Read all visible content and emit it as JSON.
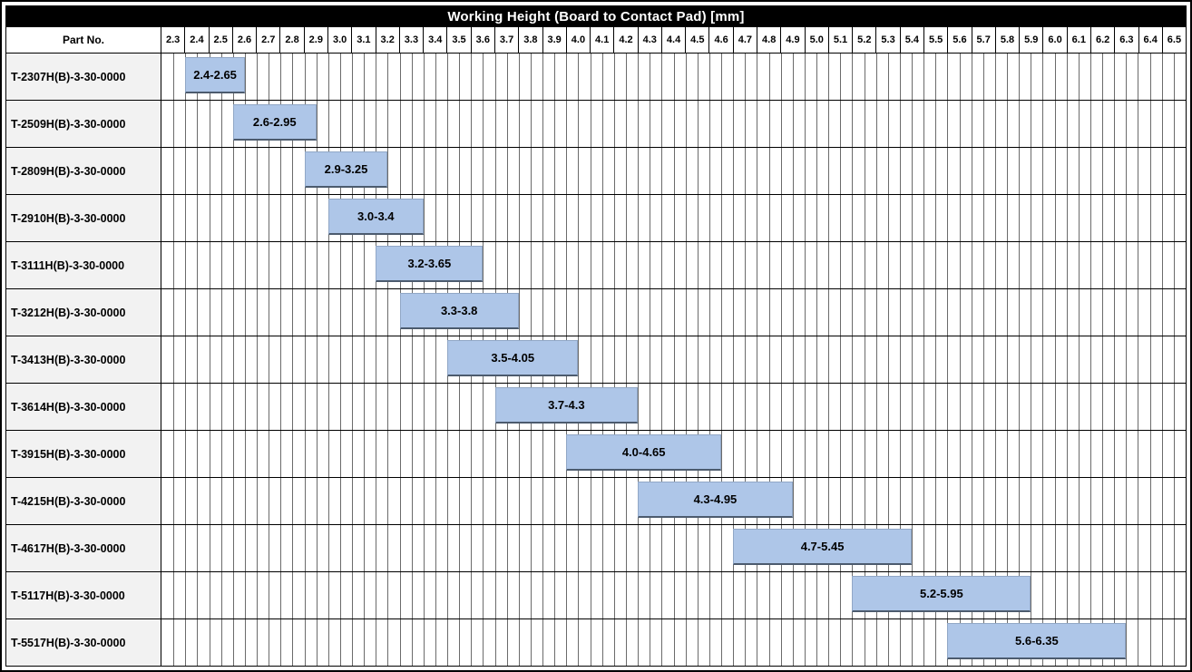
{
  "title": "Working Height (Board to Contact Pad) [mm]",
  "part_no_header": "Part No.",
  "colors": {
    "title_bg": "#000000",
    "title_text": "#FFFFFF",
    "bar_fill": "#AEC6E8",
    "bar_border": "#91A7C6",
    "bar_border_bottom": "#4C5B6E",
    "part_cell_bg": "#F2F2F2",
    "grid_line": "#6B6B6B",
    "row_border": "#000000"
  },
  "chart_data": {
    "type": "bar",
    "subtype": "horizontal-range-gantt",
    "title": "Working Height (Board to Contact Pad) [mm]",
    "xlabel": "",
    "ylabel": "Part No.",
    "grid": true,
    "axis": {
      "min": 2.3,
      "max": 6.6,
      "major_step": 0.1,
      "minor_step": 0.05,
      "tick_labels": [
        "2.3",
        "2.4",
        "2.5",
        "2.6",
        "2.7",
        "2.8",
        "2.9",
        "3.0",
        "3.1",
        "3.2",
        "3.3",
        "3.4",
        "3.5",
        "3.6",
        "3.7",
        "3.8",
        "3.9",
        "4.0",
        "4.1",
        "4.2",
        "4.3",
        "4.4",
        "4.5",
        "4.6",
        "4.7",
        "4.8",
        "4.9",
        "5.0",
        "5.1",
        "5.2",
        "5.3",
        "5.4",
        "5.5",
        "5.6",
        "5.7",
        "5.8",
        "5.9",
        "6.0",
        "6.1",
        "6.2",
        "6.3",
        "6.4",
        "6.5"
      ]
    },
    "rows": [
      {
        "part_no": "T-2307H(B)-3-30-0000",
        "start": 2.4,
        "end": 2.65,
        "label": "2.4-2.65"
      },
      {
        "part_no": "T-2509H(B)-3-30-0000",
        "start": 2.6,
        "end": 2.95,
        "label": "2.6-2.95"
      },
      {
        "part_no": "T-2809H(B)-3-30-0000",
        "start": 2.9,
        "end": 3.25,
        "label": "2.9-3.25"
      },
      {
        "part_no": "T-2910H(B)-3-30-0000",
        "start": 3.0,
        "end": 3.4,
        "label": "3.0-3.4"
      },
      {
        "part_no": "T-3111H(B)-3-30-0000",
        "start": 3.2,
        "end": 3.65,
        "label": "3.2-3.65"
      },
      {
        "part_no": "T-3212H(B)-3-30-0000",
        "start": 3.3,
        "end": 3.8,
        "label": "3.3-3.8"
      },
      {
        "part_no": "T-3413H(B)-3-30-0000",
        "start": 3.5,
        "end": 4.05,
        "label": "3.5-4.05"
      },
      {
        "part_no": "T-3614H(B)-3-30-0000",
        "start": 3.7,
        "end": 4.3,
        "label": "3.7-4.3"
      },
      {
        "part_no": "T-3915H(B)-3-30-0000",
        "start": 4.0,
        "end": 4.65,
        "label": "4.0-4.65"
      },
      {
        "part_no": "T-4215H(B)-3-30-0000",
        "start": 4.3,
        "end": 4.95,
        "label": "4.3-4.95"
      },
      {
        "part_no": "T-4617H(B)-3-30-0000",
        "start": 4.7,
        "end": 5.45,
        "label": "4.7-5.45"
      },
      {
        "part_no": "T-5117H(B)-3-30-0000",
        "start": 5.2,
        "end": 5.95,
        "label": "5.2-5.95"
      },
      {
        "part_no": "T-5517H(B)-3-30-0000",
        "start": 5.6,
        "end": 6.35,
        "label": "5.6-6.35"
      }
    ]
  }
}
